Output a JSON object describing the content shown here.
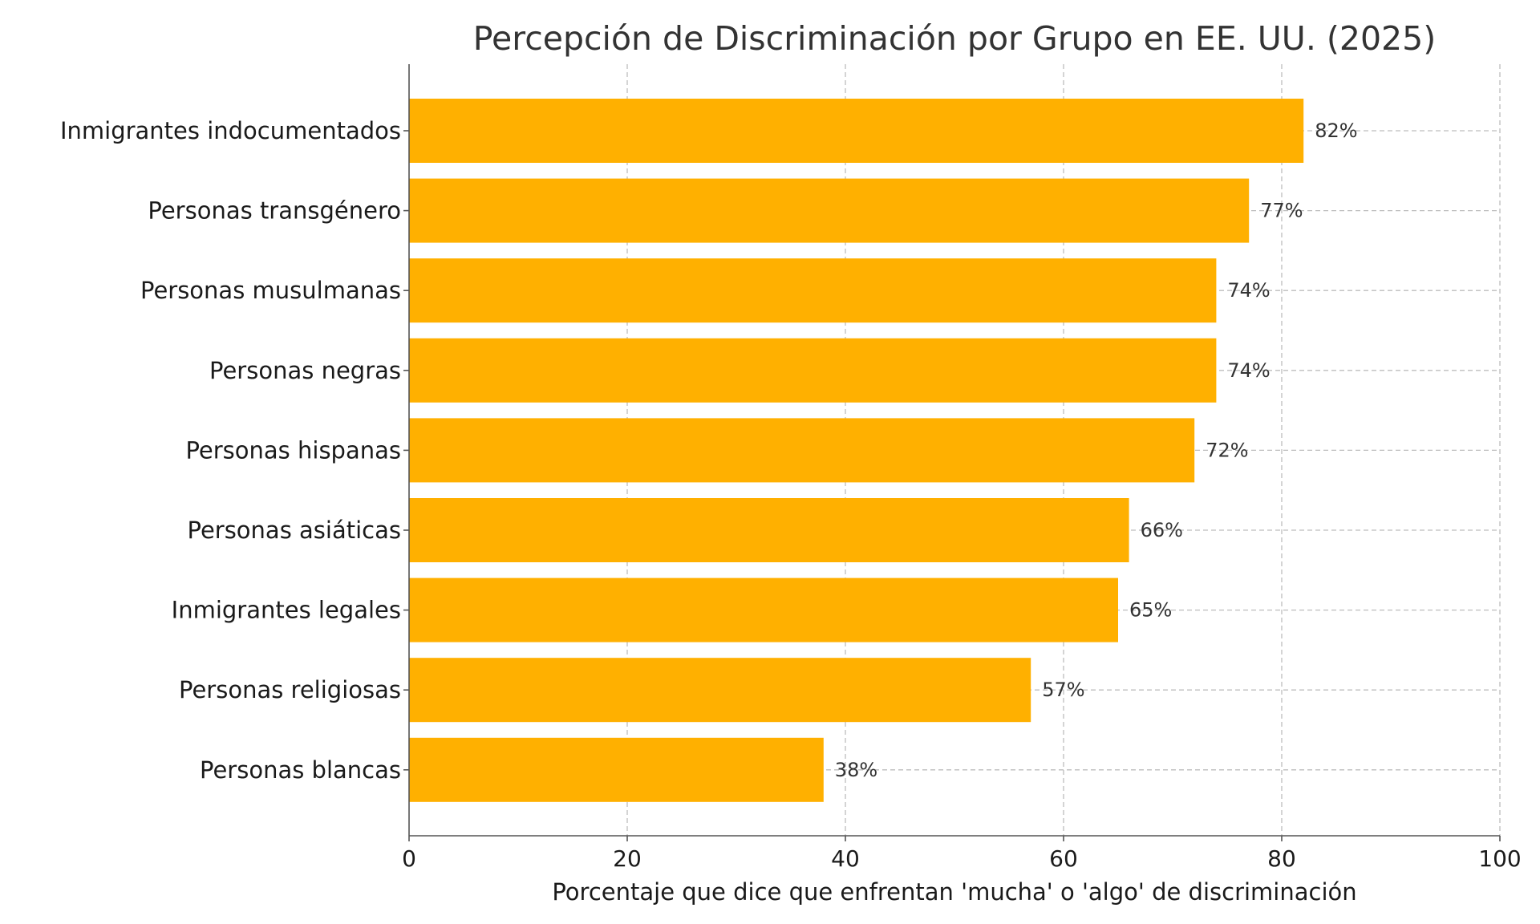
{
  "chart_data": {
    "type": "bar",
    "orientation": "horizontal",
    "title": "Percepción de Discriminación por Grupo en EE. UU. (2025)",
    "xlabel": "Porcentaje que dice que enfrentan 'mucha' o 'algo' de discriminación",
    "ylabel": "",
    "xlim": [
      0,
      100
    ],
    "xticks": [
      0,
      20,
      40,
      60,
      80,
      100
    ],
    "xtick_labels": [
      "0",
      "20",
      "40",
      "60",
      "80",
      "100"
    ],
    "grid": true,
    "bar_color": "#FFB000",
    "categories": [
      "Inmigrantes indocumentados",
      "Personas transgénero",
      "Personas musulmanas",
      "Personas negras",
      "Personas hispanas",
      "Personas asiáticas",
      "Inmigrantes legales",
      "Personas religiosas",
      "Personas blancas"
    ],
    "values": [
      82,
      77,
      74,
      74,
      72,
      66,
      65,
      57,
      38
    ],
    "value_labels": [
      "82%",
      "77%",
      "74%",
      "74%",
      "72%",
      "66%",
      "65%",
      "57%",
      "38%"
    ]
  }
}
